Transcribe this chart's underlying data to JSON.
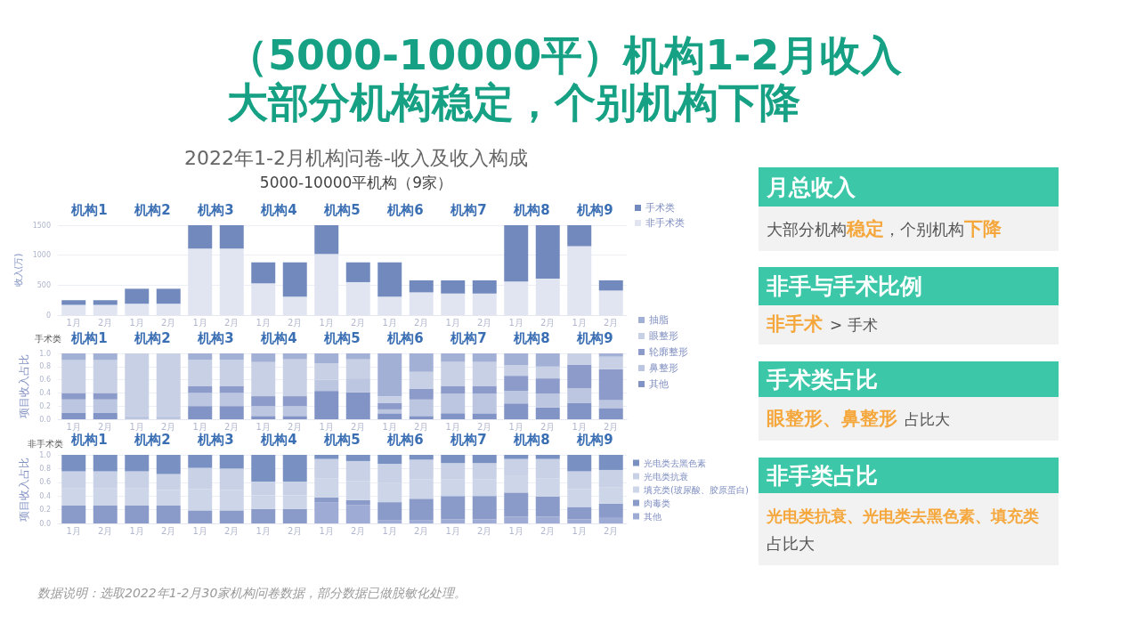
{
  "chart_data": [
    {
      "type": "other",
      "title": "（5000-10000平）机构1-2月收入",
      "subtitle": "大部分机构稳定，个别机构下降",
      "annotations": [
        "数据说明：选取2022年1-2月30家机构问卷数据，部分数据已做脱敏化处理。"
      ]
    },
    {
      "type": "bar",
      "stacked": true,
      "title": "2022年1-2月机构问卷-收入及收入构成",
      "subtitle": "5000-10000平机构（9家）",
      "ylabel": "收入(万)",
      "categories": [
        "1月",
        "2月",
        "1月",
        "2月",
        "1月",
        "2月",
        "1月",
        "2月",
        "1月",
        "2月",
        "1月",
        "2月",
        "1月",
        "2月",
        "1月",
        "2月",
        "1月",
        "2月"
      ],
      "series": [
        {
          "name": "非手术类",
          "color": "#e1e5f1",
          "values": [
            170,
            170,
            190,
            190,
            1110,
            1110,
            530,
            310,
            1020,
            550,
            310,
            380,
            360,
            360,
            560,
            610,
            1150,
            410
          ]
        },
        {
          "name": "手术类",
          "color": "#7189bd",
          "values": [
            80,
            80,
            250,
            250,
            390,
            390,
            350,
            570,
            480,
            330,
            570,
            200,
            220,
            220,
            940,
            890,
            350,
            170
          ]
        }
      ],
      "ylim": [
        0,
        1500
      ],
      "yticks": [
        0,
        500,
        1000,
        1500
      ],
      "grid": "y",
      "legend": "top right",
      "annotations": [
        "机构1",
        "机构2",
        "机构3",
        "机构4",
        "机构5",
        "机构6",
        "机构7",
        "机构8",
        "机构9"
      ]
    },
    {
      "type": "bar",
      "stacked": true,
      "title": "手术类",
      "ylabel": "项目收入占比",
      "categories": [
        "1月",
        "2月",
        "1月",
        "2月",
        "1月",
        "2月",
        "1月",
        "2月",
        "1月",
        "2月",
        "1月",
        "2月",
        "1月",
        "2月",
        "1月",
        "2月",
        "1月",
        "2月"
      ],
      "series": [
        {
          "name": "其他",
          "color": "#8293c6",
          "values": [
            0.1,
            0.1,
            0,
            0,
            0.2,
            0.2,
            0.05,
            0.05,
            0.43,
            0.41,
            0.09,
            0.05,
            0.09,
            0.09,
            0.24,
            0.18,
            0.25,
            0.17
          ]
        },
        {
          "name": "鼻整形",
          "color": "#bcc6e1",
          "values": [
            0.2,
            0.2,
            0.05,
            0.05,
            0.2,
            0.2,
            0.15,
            0.15,
            0.17,
            0.21,
            0.06,
            0.25,
            0.3,
            0.3,
            0.19,
            0.21,
            0.22,
            0.12
          ]
        },
        {
          "name": "轮廓整形",
          "color": "#8c9bca",
          "values": [
            0.1,
            0.1,
            0,
            0,
            0.1,
            0.1,
            0.15,
            0.15,
            0,
            0,
            0.1,
            0.16,
            0.11,
            0.11,
            0.23,
            0.23,
            0.36,
            0.47
          ]
        },
        {
          "name": "眼整形",
          "color": "#c8d0e6",
          "values": [
            0.5,
            0.5,
            0.95,
            0.95,
            0.4,
            0.4,
            0.52,
            0.56,
            0.25,
            0.29,
            0.1,
            0.26,
            0.37,
            0.37,
            0.16,
            0.18,
            0.17,
            0.19
          ]
        },
        {
          "name": "抽脂",
          "color": "#a3b0d5",
          "values": [
            0.1,
            0.1,
            0,
            0,
            0.1,
            0.1,
            0.13,
            0.09,
            0.15,
            0.09,
            0.65,
            0.28,
            0.13,
            0.13,
            0.18,
            0.2,
            0,
            0.05
          ]
        }
      ],
      "ylim": [
        0,
        1
      ],
      "yticks": [
        {
          "value": 0,
          "label": "0.0"
        },
        {
          "value": 0.2,
          "label": "0.2"
        },
        {
          "value": 0.4,
          "label": "0.4"
        },
        {
          "value": 0.6,
          "label": "0.6"
        },
        {
          "value": 0.8,
          "label": "0.8"
        },
        {
          "value": 1,
          "label": "1.0"
        }
      ],
      "grid": "y",
      "legend": "top right",
      "annotations": [
        "机构1",
        "机构2",
        "机构3",
        "机构4",
        "机构5",
        "机构6",
        "机构7",
        "机构8",
        "机构9"
      ]
    },
    {
      "type": "bar",
      "stacked": true,
      "title": "非手术类",
      "ylabel": "项目收入占比",
      "categories": [
        "1月",
        "2月",
        "1月",
        "2月",
        "1月",
        "2月",
        "1月",
        "2月",
        "1月",
        "2月",
        "1月",
        "2月",
        "1月",
        "2月",
        "1月",
        "2月",
        "1月",
        "2月"
      ],
      "series": [
        {
          "name": "其他",
          "color": "#9eabd4",
          "values": [
            0,
            0,
            0,
            0,
            0,
            0,
            0,
            0,
            0.31,
            0.27,
            0.05,
            0.05,
            0.06,
            0.06,
            0.1,
            0.1,
            0.06,
            0.08
          ]
        },
        {
          "name": "肉毒类",
          "color": "#8a9bca",
          "values": [
            0.26,
            0.26,
            0.26,
            0.26,
            0.19,
            0.19,
            0.21,
            0.21,
            0.07,
            0.07,
            0.26,
            0.31,
            0.34,
            0.34,
            0.35,
            0.29,
            0.18,
            0.21
          ]
        },
        {
          "name": "填充类(玻尿酸、胶原蛋白)",
          "color": "#cdd5e8",
          "values": [
            0.25,
            0.25,
            0.25,
            0.23,
            0.31,
            0.3,
            0.2,
            0.2,
            0.28,
            0.28,
            0.28,
            0.28,
            0.24,
            0.24,
            0.24,
            0.27,
            0.26,
            0.24
          ]
        },
        {
          "name": "光电类抗衰",
          "color": "#c8d1e6",
          "values": [
            0.25,
            0.25,
            0.25,
            0.23,
            0.31,
            0.31,
            0.2,
            0.2,
            0.28,
            0.29,
            0.28,
            0.29,
            0.24,
            0.24,
            0.25,
            0.28,
            0.26,
            0.25
          ]
        },
        {
          "name": "光电类去黑色素",
          "color": "#7890c2",
          "values": [
            0.24,
            0.24,
            0.24,
            0.28,
            0.19,
            0.2,
            0.39,
            0.39,
            0.06,
            0.09,
            0.13,
            0.07,
            0.12,
            0.12,
            0.06,
            0.06,
            0.24,
            0.22
          ]
        }
      ],
      "ylim": [
        0,
        1
      ],
      "yticks": [
        {
          "value": 0,
          "label": "0.0"
        },
        {
          "value": 0.2,
          "label": "0.2"
        },
        {
          "value": 0.4,
          "label": "0.4"
        },
        {
          "value": 0.6,
          "label": "0.6"
        },
        {
          "value": 0.8,
          "label": "0.8"
        },
        {
          "value": 1,
          "label": "1.0"
        }
      ],
      "grid": "y",
      "legend": "right",
      "annotations": [
        "机构1",
        "机构2",
        "机构3",
        "机构4",
        "机构5",
        "机构6",
        "机构7",
        "机构8",
        "机构9"
      ]
    },
    {
      "type": "other",
      "annotations": [
        "月总收入",
        "大部分机构",
        "稳定",
        "，个别机构",
        "下降",
        "非手与手术比例",
        "非手术",
        "> 手术",
        "手术类占比",
        "眼整形、鼻整形",
        "占比大",
        "非手类占比",
        "光电类抗衰、光电类去黑色素、填充类",
        "占比大"
      ]
    }
  ]
}
